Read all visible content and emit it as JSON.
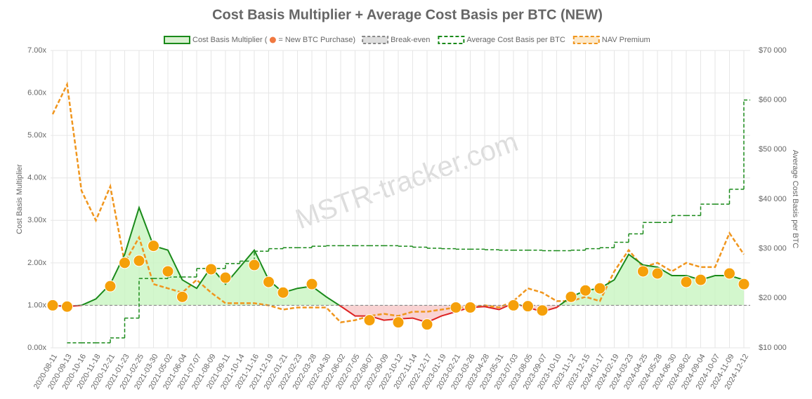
{
  "chart_data": {
    "type": "line",
    "title": "Cost Basis Multiplier + Average Cost Basis per BTC (NEW)",
    "watermark": "MSTR-tracker.com",
    "y_label": "Cost Basis Multiplier",
    "y2_label": "Average Cost Basis per BTC",
    "categories": [
      "2020-08-11",
      "2020-09-13",
      "2020-10-16",
      "2020-11-18",
      "2020-12-21",
      "2021-01-23",
      "2021-02-25",
      "2021-03-30",
      "2021-05-02",
      "2021-06-04",
      "2021-07-07",
      "2021-08-09",
      "2021-09-11",
      "2021-10-14",
      "2021-11-16",
      "2021-12-19",
      "2022-01-21",
      "2022-02-23",
      "2022-03-28",
      "2022-04-30",
      "2022-06-02",
      "2022-07-05",
      "2022-08-07",
      "2022-09-09",
      "2022-10-12",
      "2022-11-14",
      "2022-12-17",
      "2023-01-19",
      "2023-02-21",
      "2023-03-26",
      "2023-04-28",
      "2023-05-31",
      "2023-07-03",
      "2023-08-05",
      "2023-09-07",
      "2023-10-10",
      "2023-11-12",
      "2023-12-15",
      "2024-01-17",
      "2024-02-19",
      "2024-03-23",
      "2024-04-25",
      "2024-05-28",
      "2024-06-30",
      "2024-08-02",
      "2024-09-04",
      "2024-10-07",
      "2024-11-09",
      "2024-12-12"
    ],
    "ylim": [
      0,
      7
    ],
    "yticks": [
      {
        "value": 0,
        "label": "0.00x"
      },
      {
        "value": 1,
        "label": "1.00x"
      },
      {
        "value": 2,
        "label": "2.00x"
      },
      {
        "value": 3,
        "label": "3.00x"
      },
      {
        "value": 4,
        "label": "4.00x"
      },
      {
        "value": 5,
        "label": "5.00x"
      },
      {
        "value": 6,
        "label": "6.00x"
      },
      {
        "value": 7,
        "label": "7.00x"
      }
    ],
    "y2lim": [
      10000,
      70000
    ],
    "y2ticks": [
      {
        "value": 10000,
        "label": "$10 000"
      },
      {
        "value": 20000,
        "label": "$20 000"
      },
      {
        "value": 30000,
        "label": "$30 000"
      },
      {
        "value": 40000,
        "label": "$40 000"
      },
      {
        "value": 50000,
        "label": "$50 000"
      },
      {
        "value": 60000,
        "label": "$60 000"
      },
      {
        "value": 70000,
        "label": "$70 000"
      }
    ],
    "grid": true,
    "series": [
      {
        "name": "Cost Basis Multiplier (",
        "color": "#1a8a1a",
        "below_color": "#dd2222",
        "values": [
          1.0,
          0.97,
          1.0,
          1.15,
          1.5,
          2.2,
          3.3,
          2.4,
          2.3,
          1.6,
          1.4,
          1.9,
          1.5,
          1.9,
          2.3,
          1.6,
          1.3,
          1.4,
          1.45,
          1.2,
          0.98,
          0.75,
          0.75,
          0.65,
          0.68,
          0.7,
          0.6,
          0.75,
          0.85,
          0.95,
          0.97,
          0.9,
          1.05,
          0.95,
          0.85,
          0.95,
          1.2,
          1.35,
          1.4,
          1.6,
          2.2,
          1.95,
          1.9,
          1.7,
          1.7,
          1.6,
          1.7,
          1.7,
          1.6
        ]
      },
      {
        "name": "= New BTC Purchase)",
        "color": "#f5a00a",
        "values": [
          1.0,
          0.97,
          null,
          null,
          1.45,
          2.0,
          2.05,
          2.4,
          1.8,
          1.2,
          null,
          1.85,
          1.65,
          null,
          1.95,
          1.55,
          1.3,
          null,
          1.5,
          null,
          null,
          null,
          0.65,
          null,
          0.6,
          null,
          0.55,
          null,
          0.95,
          0.95,
          null,
          null,
          1.0,
          0.98,
          0.88,
          null,
          1.2,
          1.35,
          1.4,
          null,
          null,
          1.8,
          1.75,
          null,
          1.55,
          1.6,
          null,
          1.75,
          1.5
        ]
      },
      {
        "name": "Break-even",
        "color": "#888888",
        "value": 1
      },
      {
        "name": "Average Cost Basis per BTC",
        "color": "#1a8a1a",
        "axis": "y2",
        "values": [
          null,
          11000,
          11000,
          11000,
          12000,
          16000,
          24000,
          24000,
          24300,
          24300,
          26000,
          26000,
          27000,
          27500,
          29500,
          30000,
          30200,
          30200,
          30500,
          30600,
          30600,
          30600,
          30600,
          30600,
          30500,
          30300,
          30100,
          30000,
          29900,
          29900,
          29800,
          29700,
          29700,
          29700,
          29600,
          29600,
          29700,
          30000,
          30200,
          31300,
          33000,
          35300,
          35300,
          36700,
          36700,
          39000,
          39000,
          42000,
          60000
        ]
      },
      {
        "name": "NAV Premium",
        "color": "#f0961e",
        "values": [
          5.5,
          6.2,
          3.7,
          3.0,
          3.8,
          2.0,
          2.6,
          1.5,
          1.4,
          1.3,
          1.6,
          1.3,
          1.05,
          1.05,
          1.05,
          1.0,
          0.9,
          0.95,
          0.95,
          0.95,
          0.6,
          0.65,
          0.75,
          0.8,
          0.75,
          0.85,
          0.85,
          0.9,
          0.95,
          0.95,
          1.0,
          0.95,
          1.1,
          1.4,
          1.3,
          1.1,
          1.1,
          1.2,
          1.1,
          1.8,
          2.3,
          1.9,
          2.0,
          1.8,
          2.0,
          1.9,
          1.9,
          2.7,
          2.2
        ]
      }
    ]
  }
}
